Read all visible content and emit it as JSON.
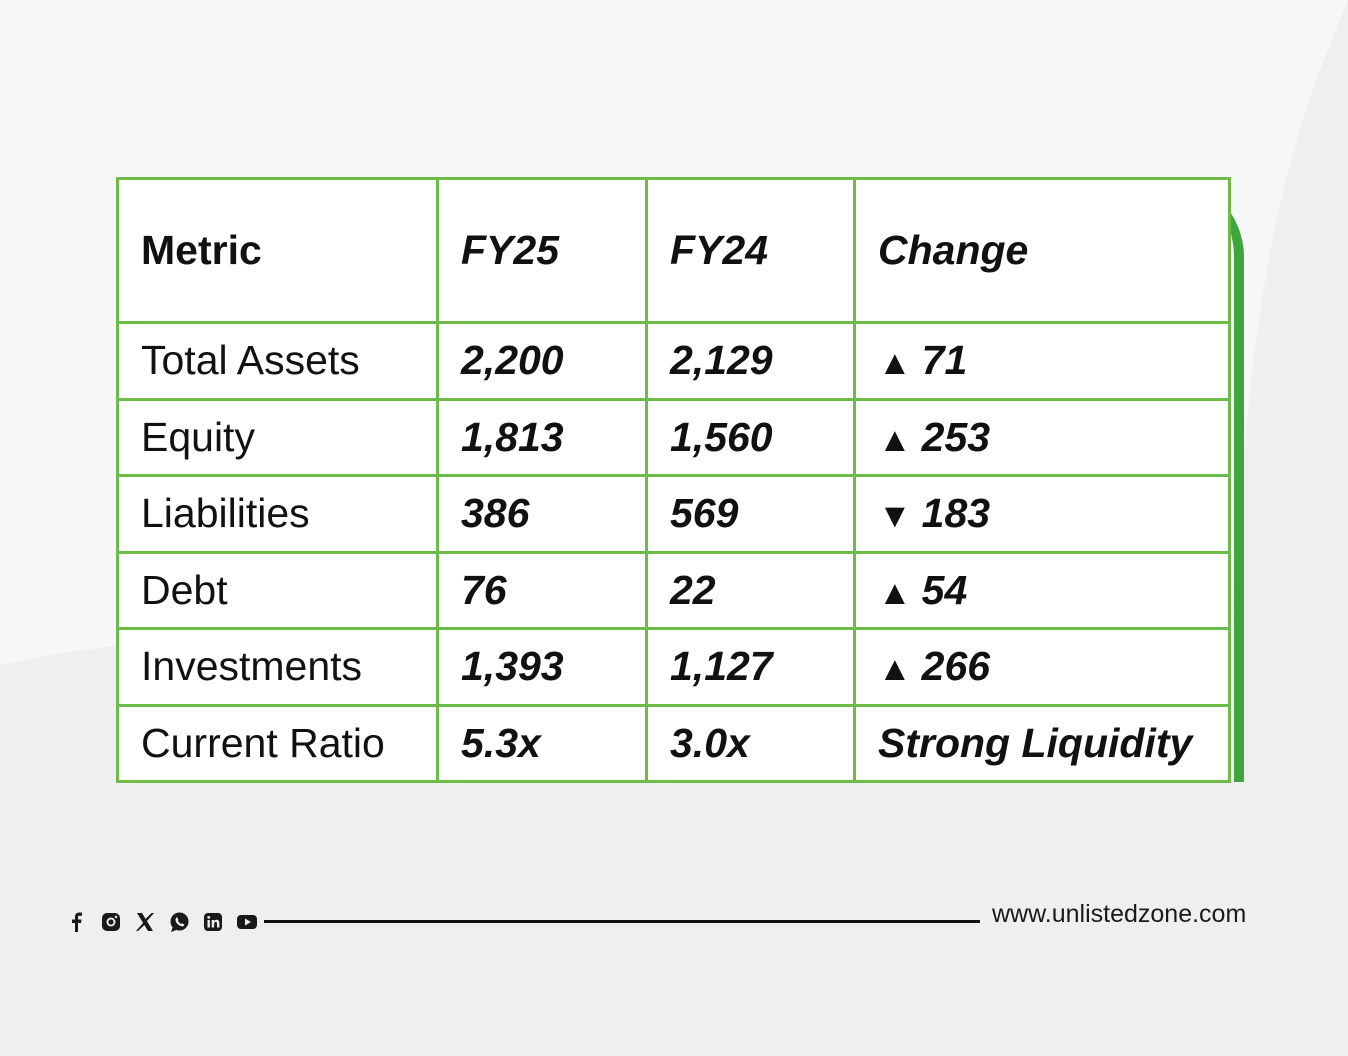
{
  "table": {
    "headers": [
      "Metric",
      "FY25",
      "FY24",
      "Change"
    ],
    "rows": [
      {
        "metric": "Total Assets",
        "fy25": "2,200",
        "fy24": "2,129",
        "dir": "▲",
        "change": "71"
      },
      {
        "metric": "Equity",
        "fy25": "1,813",
        "fy24": "1,560",
        "dir": "▲",
        "change": "253"
      },
      {
        "metric": "Liabilities",
        "fy25": "386",
        "fy24": "569",
        "dir": "▼",
        "change": "183"
      },
      {
        "metric": "Debt",
        "fy25": "76",
        "fy24": "22",
        "dir": "▲",
        "change": "54"
      },
      {
        "metric": "Investments",
        "fy25": "1,393",
        "fy24": "1,127",
        "dir": "▲",
        "change": "266"
      },
      {
        "metric": "Current Ratio",
        "fy25": "5.3x",
        "fy24": "3.0x",
        "dir": "",
        "change": "Strong Liquidity"
      }
    ]
  },
  "footer": {
    "social_icons": [
      "facebook-icon",
      "instagram-icon",
      "x-icon",
      "whatsapp-icon",
      "linkedin-icon",
      "youtube-icon"
    ],
    "website": "www.unlistedzone.com"
  },
  "colors": {
    "border": "#6dbb4b",
    "accent": "#3ea63c",
    "background": "#efefef"
  }
}
